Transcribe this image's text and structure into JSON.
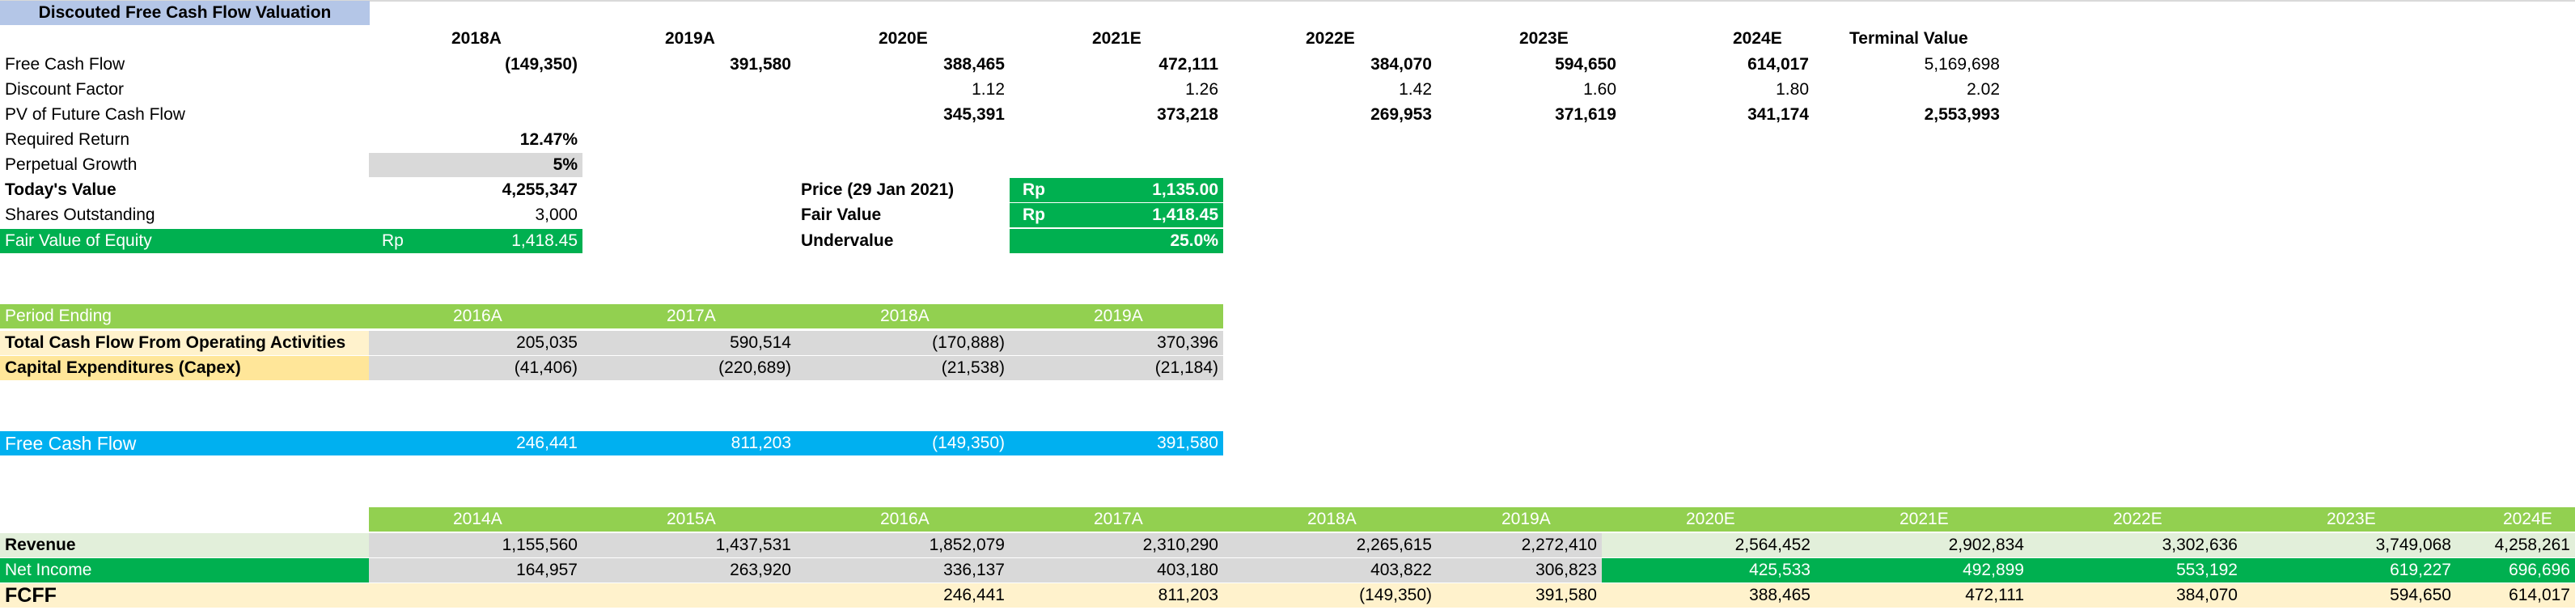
{
  "title": "Discouted Free Cash Flow Valuation",
  "dcf": {
    "years": [
      "2018A",
      "2019A",
      "2020E",
      "2021E",
      "2022E",
      "2023E",
      "2024E",
      "Terminal Value"
    ],
    "fcf_label": "Free Cash Flow",
    "fcf": [
      "(149,350)",
      "391,580",
      "388,465",
      "472,111",
      "384,070",
      "594,650",
      "614,017",
      "5,169,698"
    ],
    "discount_label": "Discount Factor",
    "discount": [
      "1.12",
      "1.26",
      "1.42",
      "1.60",
      "1.80",
      "2.02"
    ],
    "pv_label": "PV of Future Cash Flow",
    "pv": [
      "345,391",
      "373,218",
      "269,953",
      "371,619",
      "341,174",
      "2,553,993"
    ]
  },
  "inputs": {
    "required_return_label": "Required Return",
    "required_return": "12.47%",
    "perpetual_growth_label": "Perpetual Growth",
    "perpetual_growth": "5%",
    "todays_value_label": "Today's Value",
    "todays_value": "4,255,347",
    "shares_label": "Shares Outstanding",
    "shares": "3,000",
    "fair_value_equity_label": "Fair Value of Equity",
    "fair_value_equity_currency": "Rp",
    "fair_value_equity": "1,418.45"
  },
  "price_box": {
    "price_label": "Price (29 Jan 2021)",
    "price_currency": "Rp",
    "price": "1,135.00",
    "fair_label": "Fair Value",
    "fair_currency": "Rp",
    "fair": "1,418.45",
    "status_label": "Undervalue",
    "status_value": "25.0%"
  },
  "cashflow": {
    "header_label": "Period Ending",
    "years": [
      "2016A",
      "2017A",
      "2018A",
      "2019A"
    ],
    "ocf_label": "Total Cash Flow From Operating Activities",
    "ocf": [
      "205,035",
      "590,514",
      "(170,888)",
      "370,396"
    ],
    "capex_label": "Capital Expenditures (Capex)",
    "capex": [
      "(41,406)",
      "(220,689)",
      "(21,538)",
      "(21,184)"
    ],
    "fcf_label": "Free Cash Flow",
    "fcf": [
      "246,441",
      "811,203",
      "(149,350)",
      "391,580"
    ]
  },
  "history": {
    "years": [
      "2014A",
      "2015A",
      "2016A",
      "2017A",
      "2018A",
      "2019A",
      "2020E",
      "2021E",
      "2022E",
      "2023E",
      "2024E"
    ],
    "revenue_label": "Revenue",
    "revenue": [
      "1,155,560",
      "1,437,531",
      "1,852,079",
      "2,310,290",
      "2,265,615",
      "2,272,410",
      "2,564,452",
      "2,902,834",
      "3,302,636",
      "3,749,068",
      "4,258,261"
    ],
    "net_income_label": "Net Income",
    "net_income": [
      "164,957",
      "263,920",
      "336,137",
      "403,180",
      "403,822",
      "306,823",
      "425,533",
      "492,899",
      "553,192",
      "619,227",
      "696,696"
    ],
    "fcff_label": "FCFF",
    "fcff": [
      "",
      "",
      "246,441",
      "811,203",
      "(149,350)",
      "391,580",
      "388,465",
      "472,111",
      "384,070",
      "594,650",
      "614,017"
    ]
  }
}
